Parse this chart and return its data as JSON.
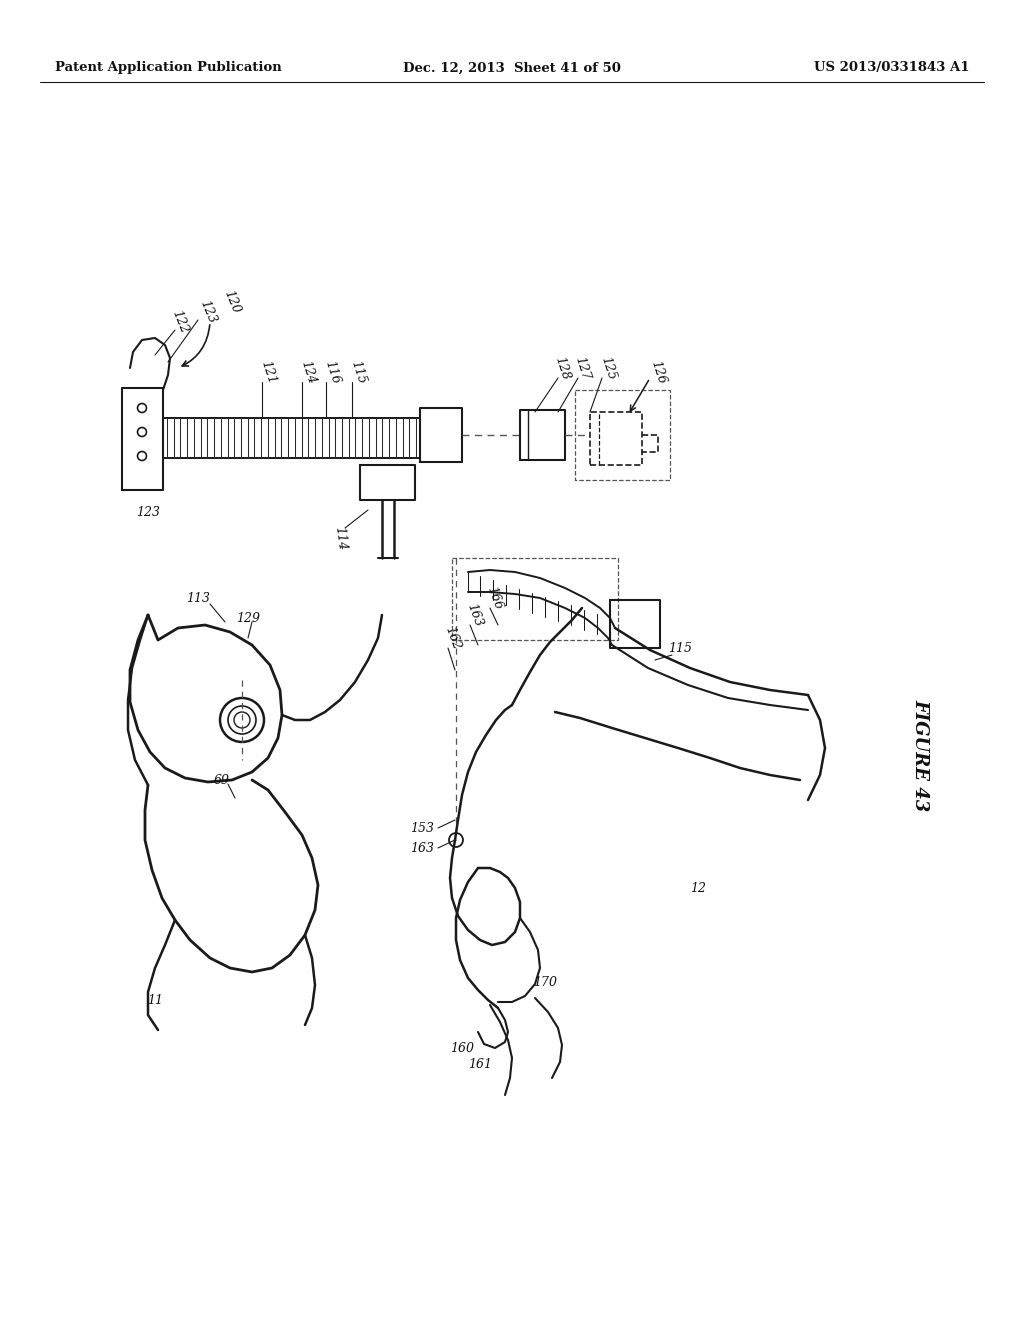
{
  "background_color": "#ffffff",
  "header_left": "Patent Application Publication",
  "header_center": "Dec. 12, 2013  Sheet 41 of 50",
  "header_right": "US 2013/0331843 A1",
  "figure_label": "FIGURE 43",
  "line_color": "#1a1a1a",
  "text_color": "#111111"
}
